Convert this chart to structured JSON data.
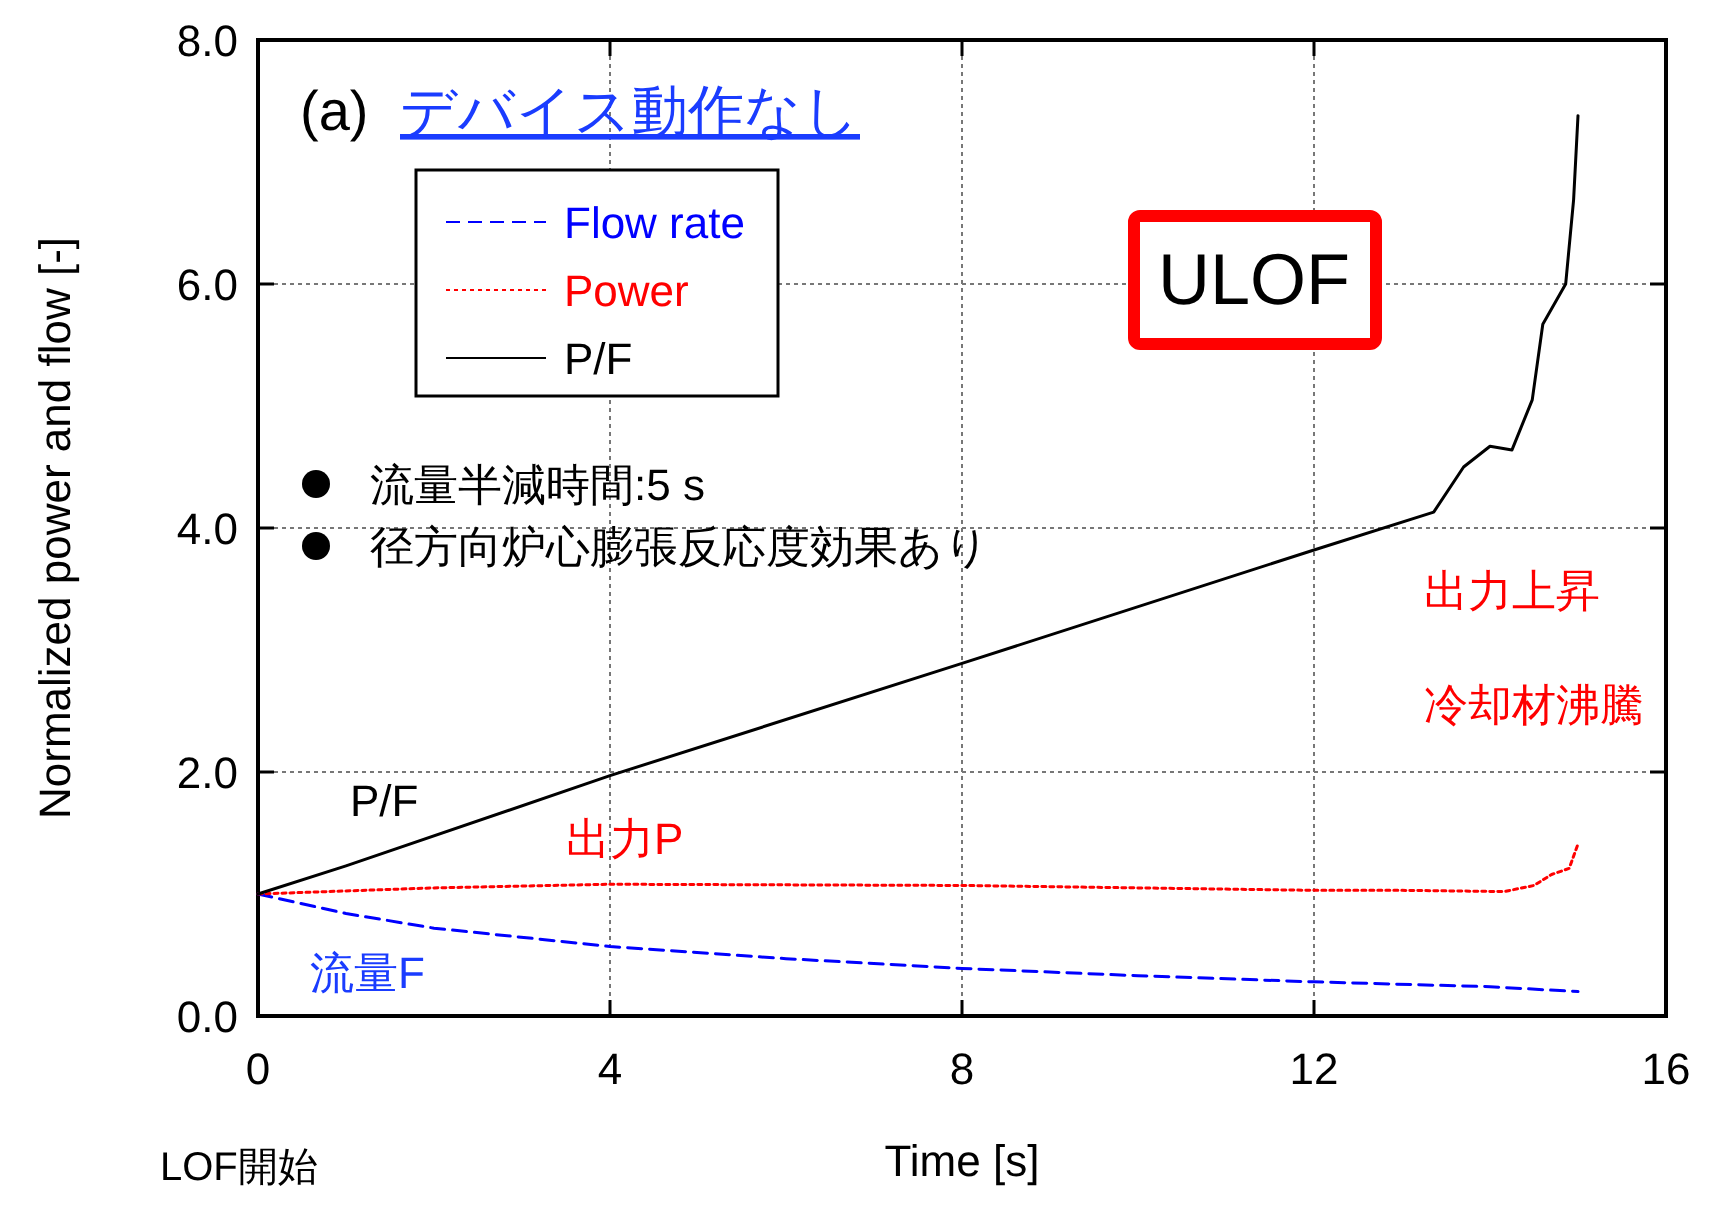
{
  "chart_data": {
    "type": "line",
    "title": "(a) デバイス動作なし",
    "xlabel": "Time [s]",
    "ylabel": "Normalized power and flow [-]",
    "xlim": [
      0,
      16
    ],
    "xticks": [
      0,
      4,
      8,
      12,
      16
    ],
    "ylim": [
      0,
      8
    ],
    "yticks": [
      {
        "value": 0,
        "label": "0.0"
      },
      {
        "value": 2,
        "label": "2.0"
      },
      {
        "value": 4,
        "label": "4.0"
      },
      {
        "value": 6,
        "label": "6.0"
      },
      {
        "value": 8,
        "label": "8.0"
      }
    ],
    "grid": true,
    "legend": "top left",
    "series": [
      {
        "name": "Flow rate",
        "color": "#0000ff",
        "line_style": "dashed",
        "x": [
          0,
          1,
          2,
          4,
          6,
          8,
          10,
          12,
          14,
          15
        ],
        "values": [
          1.0,
          0.84,
          0.72,
          0.57,
          0.47,
          0.39,
          0.33,
          0.28,
          0.24,
          0.2
        ]
      },
      {
        "name": "Power",
        "color": "#ff0000",
        "line_style": "dotted",
        "x": [
          0,
          2,
          4,
          8,
          12,
          13,
          14.16,
          14.5,
          14.7,
          14.9,
          15.0
        ],
        "values": [
          1.0,
          1.05,
          1.08,
          1.07,
          1.03,
          1.03,
          1.02,
          1.07,
          1.16,
          1.21,
          1.41
        ]
      },
      {
        "name": "P/F",
        "color": "#000000",
        "line_style": "solid",
        "x": [
          0,
          1,
          4,
          8,
          12,
          13.36,
          13.7,
          14.0,
          14.25,
          14.48,
          14.6,
          14.86,
          14.95,
          15.0
        ],
        "values": [
          1.0,
          1.23,
          1.97,
          2.89,
          3.82,
          4.13,
          4.5,
          4.67,
          4.64,
          5.05,
          5.67,
          6.0,
          6.69,
          7.38
        ]
      }
    ],
    "annotations": [
      "ULOF",
      "流量半減時間:5 s",
      "径方向炉心膨張反応度効果あり",
      "出力上昇",
      "冷却材沸騰",
      "P/F",
      "出力P",
      "流量F",
      "LOF開始"
    ]
  }
}
